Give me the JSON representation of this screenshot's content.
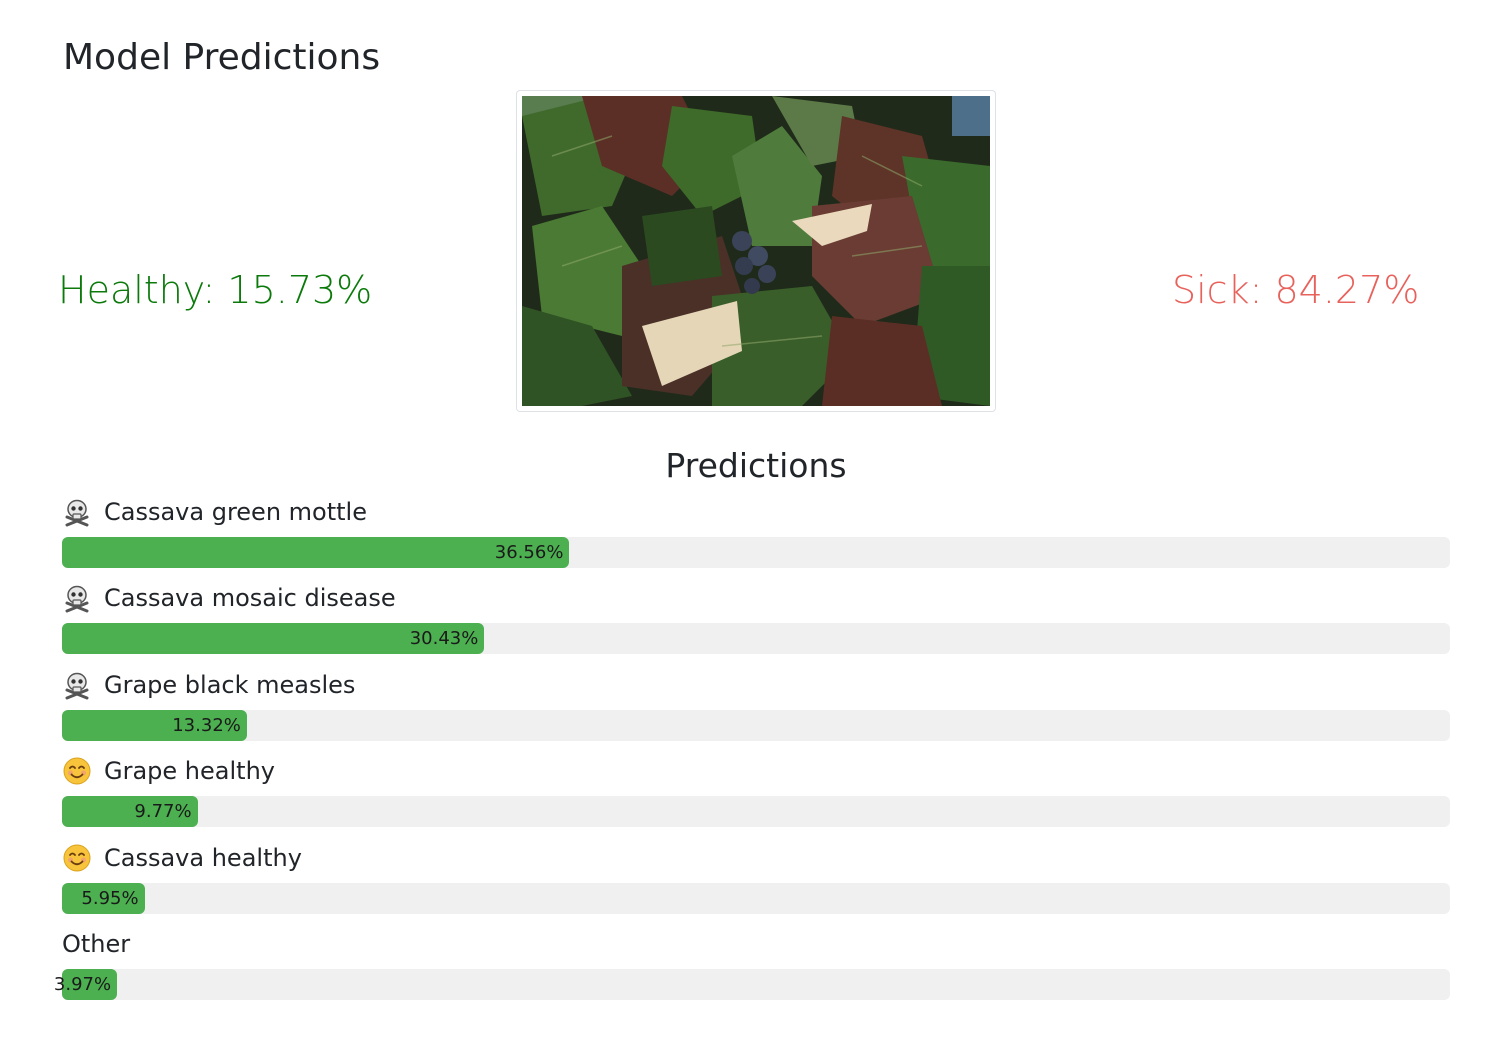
{
  "page": {
    "title": "Model Predictions",
    "healthy_text": "Healthy: 15.73%",
    "sick_text": "Sick: 84.27%",
    "healthy_color": "#0b7a0b",
    "sick_color": "#e8625c"
  },
  "predictions": {
    "header": "Predictions",
    "bar_color": "#4caf50",
    "track_color": "#f0f0f0",
    "items": [
      {
        "label": "Cassava green mottle",
        "icon": "skull-crossbones-icon",
        "value": 36.56,
        "value_text": "36.56%"
      },
      {
        "label": "Cassava mosaic disease",
        "icon": "skull-crossbones-icon",
        "value": 30.43,
        "value_text": "30.43%"
      },
      {
        "label": "Grape black measles",
        "icon": "skull-crossbones-icon",
        "value": 13.32,
        "value_text": "13.32%"
      },
      {
        "label": "Grape healthy",
        "icon": "smiling-face-icon",
        "value": 9.77,
        "value_text": "9.77%"
      },
      {
        "label": "Cassava healthy",
        "icon": "smiling-face-icon",
        "value": 5.95,
        "value_text": "5.95%"
      },
      {
        "label": "Other",
        "icon": "",
        "value": 3.97,
        "value_text": "3.97%"
      }
    ]
  }
}
